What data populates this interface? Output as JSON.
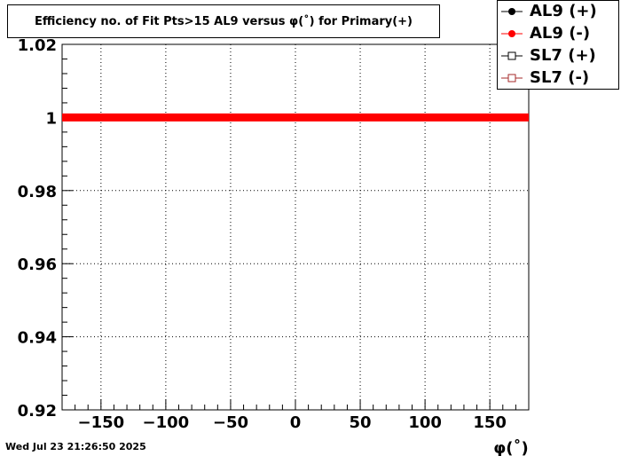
{
  "chart_data": {
    "type": "line",
    "title": "Efficiency no. of Fit Pts>15 AL9 versus φ(˚) for Primary(+)",
    "xlabel": "φ(˚)",
    "ylabel": "",
    "xlim": [
      -180,
      180
    ],
    "ylim": [
      0.92,
      1.02
    ],
    "x_ticks": [
      -150,
      -100,
      -50,
      0,
      50,
      100,
      150
    ],
    "x_tick_labels": [
      "−150",
      "−100",
      "−50",
      "0",
      "50",
      "100",
      "150"
    ],
    "y_ticks": [
      0.92,
      0.94,
      0.96,
      0.98,
      1.0,
      1.02
    ],
    "y_tick_labels": [
      "0.92",
      "0.94",
      "0.96",
      "0.98",
      "1",
      "1.02"
    ],
    "grid": true,
    "legend_position": "top-right",
    "series": [
      {
        "name": "AL9 (+)",
        "marker": "filled-circle",
        "color": "#000000",
        "x": [
          -180,
          180
        ],
        "y": [
          1.0,
          1.0
        ]
      },
      {
        "name": "AL9 (-)",
        "marker": "filled-circle",
        "color": "#ff0000",
        "x": [
          -180,
          180
        ],
        "y": [
          1.0,
          1.0
        ]
      },
      {
        "name": "SL7 (+)",
        "marker": "open-square",
        "color": "#000000",
        "x": [
          -180,
          180
        ],
        "y": [
          1.0,
          1.0
        ]
      },
      {
        "name": "SL7 (-)",
        "marker": "open-square",
        "color": "#a52a2a",
        "x": [
          -180,
          180
        ],
        "y": [
          1.0,
          1.0
        ]
      }
    ]
  },
  "footer": {
    "timestamp": "Wed Jul 23 21:26:50 2025"
  }
}
